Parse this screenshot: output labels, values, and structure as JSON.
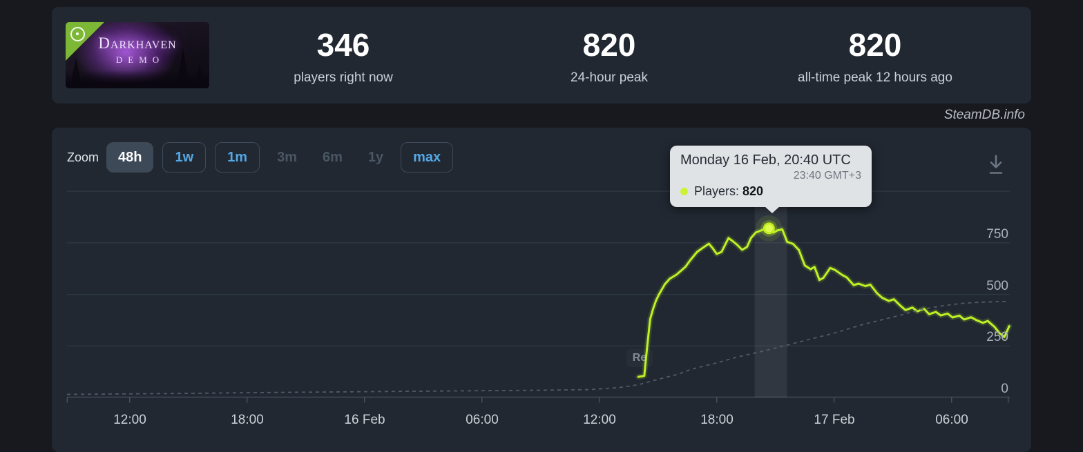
{
  "header": {
    "banner": {
      "title": "Darkhaven",
      "subtitle": "DEMO",
      "ribbon_icon": "demo-disc-icon"
    },
    "stats": [
      {
        "value": "346",
        "label": "players right now"
      },
      {
        "value": "820",
        "label": "24-hour peak"
      },
      {
        "value": "820",
        "label": "all-time peak 12 hours ago"
      }
    ]
  },
  "watermark": "SteamDB.info",
  "toolbar": {
    "zoom_label": "Zoom",
    "buttons": [
      {
        "label": "48h",
        "state": "selected"
      },
      {
        "label": "1w",
        "state": "enabled"
      },
      {
        "label": "1m",
        "state": "enabled"
      },
      {
        "label": "3m",
        "state": "disabled"
      },
      {
        "label": "6m",
        "state": "disabled"
      },
      {
        "label": "1y",
        "state": "disabled"
      },
      {
        "label": "max",
        "state": "enabled"
      }
    ]
  },
  "tooltip": {
    "title": "Monday 16 Feb, 20:40 UTC",
    "local_time": "23:40 GMT+3",
    "series_label": "Players:",
    "series_value": "820",
    "dot_color": "#cdf336"
  },
  "flag": {
    "label": "Re"
  },
  "colors": {
    "page_bg": "#17191e",
    "panel_bg": "#212832",
    "players_line": "#bff226",
    "dashed_line": "#5c6673",
    "gridline": "#323c47",
    "accent_blue": "#55a8e6",
    "tooltip_bg": "#e0e3e6"
  },
  "chart_data": {
    "type": "line",
    "title": "",
    "xlabel": "",
    "ylabel": "",
    "grid": true,
    "legend": "none",
    "x_axis": {
      "tick_labels": [
        "12:00",
        "18:00",
        "16 Feb",
        "06:00",
        "12:00",
        "18:00",
        "17 Feb",
        "06:00"
      ],
      "tick_hours": [
        0,
        6,
        12,
        18,
        24,
        30,
        36,
        42
      ],
      "hours_reference": "hours since 15 Feb 12:00",
      "range_hours": [
        -3.2,
        44.97
      ]
    },
    "y_axis": {
      "tick_labels": [
        "750",
        "500",
        "250",
        "0"
      ],
      "tick_values": [
        750,
        500,
        250,
        0
      ],
      "gridline_values": [
        1000,
        750,
        500,
        250
      ],
      "range": [
        0,
        1218
      ]
    },
    "hover_band_hours": [
      31.94,
      33.6
    ],
    "marker": {
      "h": 32.67,
      "players": 820
    },
    "series": [
      {
        "name": "Players",
        "color": "#bff226",
        "style": "solid",
        "points": [
          [
            26.0,
            100
          ],
          [
            26.3,
            105
          ],
          [
            26.45,
            250
          ],
          [
            26.6,
            380
          ],
          [
            26.75,
            430
          ],
          [
            26.9,
            470
          ],
          [
            27.05,
            500
          ],
          [
            27.35,
            549
          ],
          [
            27.6,
            576
          ],
          [
            27.95,
            596
          ],
          [
            28.4,
            633
          ],
          [
            28.65,
            666
          ],
          [
            29.0,
            706
          ],
          [
            29.25,
            723
          ],
          [
            29.6,
            746
          ],
          [
            29.8,
            723
          ],
          [
            30.0,
            696
          ],
          [
            30.25,
            706
          ],
          [
            30.6,
            773
          ],
          [
            30.85,
            756
          ],
          [
            31.05,
            740
          ],
          [
            31.3,
            716
          ],
          [
            31.55,
            730
          ],
          [
            31.75,
            773
          ],
          [
            32.0,
            800
          ],
          [
            32.35,
            813
          ],
          [
            32.67,
            820
          ],
          [
            32.9,
            800
          ],
          [
            33.1,
            810
          ],
          [
            33.35,
            815
          ],
          [
            33.6,
            755
          ],
          [
            33.9,
            745
          ],
          [
            34.2,
            715
          ],
          [
            34.5,
            640
          ],
          [
            34.8,
            622
          ],
          [
            35.0,
            633
          ],
          [
            35.25,
            570
          ],
          [
            35.45,
            580
          ],
          [
            35.8,
            628
          ],
          [
            36.05,
            618
          ],
          [
            36.4,
            595
          ],
          [
            36.65,
            582
          ],
          [
            37.0,
            545
          ],
          [
            37.25,
            552
          ],
          [
            37.6,
            540
          ],
          [
            37.85,
            547
          ],
          [
            38.2,
            505
          ],
          [
            38.45,
            484
          ],
          [
            38.8,
            468
          ],
          [
            39.05,
            476
          ],
          [
            39.4,
            444
          ],
          [
            39.65,
            424
          ],
          [
            40.0,
            436
          ],
          [
            40.25,
            418
          ],
          [
            40.6,
            430
          ],
          [
            40.85,
            404
          ],
          [
            41.2,
            415
          ],
          [
            41.45,
            398
          ],
          [
            41.8,
            407
          ],
          [
            42.05,
            388
          ],
          [
            42.4,
            397
          ],
          [
            42.65,
            378
          ],
          [
            43.0,
            389
          ],
          [
            43.25,
            376
          ],
          [
            43.6,
            362
          ],
          [
            43.85,
            371
          ],
          [
            44.2,
            342
          ],
          [
            44.45,
            312
          ],
          [
            44.7,
            293
          ],
          [
            44.95,
            346
          ]
        ]
      },
      {
        "name": "unlabeled-dashed-trend",
        "color": "#5c6673",
        "style": "dashed",
        "points": [
          [
            -3.2,
            15
          ],
          [
            2,
            19
          ],
          [
            7,
            24
          ],
          [
            12,
            28
          ],
          [
            17,
            32
          ],
          [
            21,
            35
          ],
          [
            23.5,
            38
          ],
          [
            25,
            48
          ],
          [
            26,
            62
          ],
          [
            27,
            88
          ],
          [
            28,
            112
          ],
          [
            28.7,
            137
          ],
          [
            30,
            168
          ],
          [
            31,
            195
          ],
          [
            32.5,
            228
          ],
          [
            34,
            264
          ],
          [
            35,
            288
          ],
          [
            36,
            312
          ],
          [
            37.5,
            355
          ],
          [
            38.5,
            378
          ],
          [
            39.5,
            402
          ],
          [
            40.5,
            428
          ],
          [
            41.5,
            444
          ],
          [
            42.5,
            456
          ],
          [
            43.5,
            462
          ],
          [
            44.95,
            466
          ]
        ]
      }
    ]
  }
}
